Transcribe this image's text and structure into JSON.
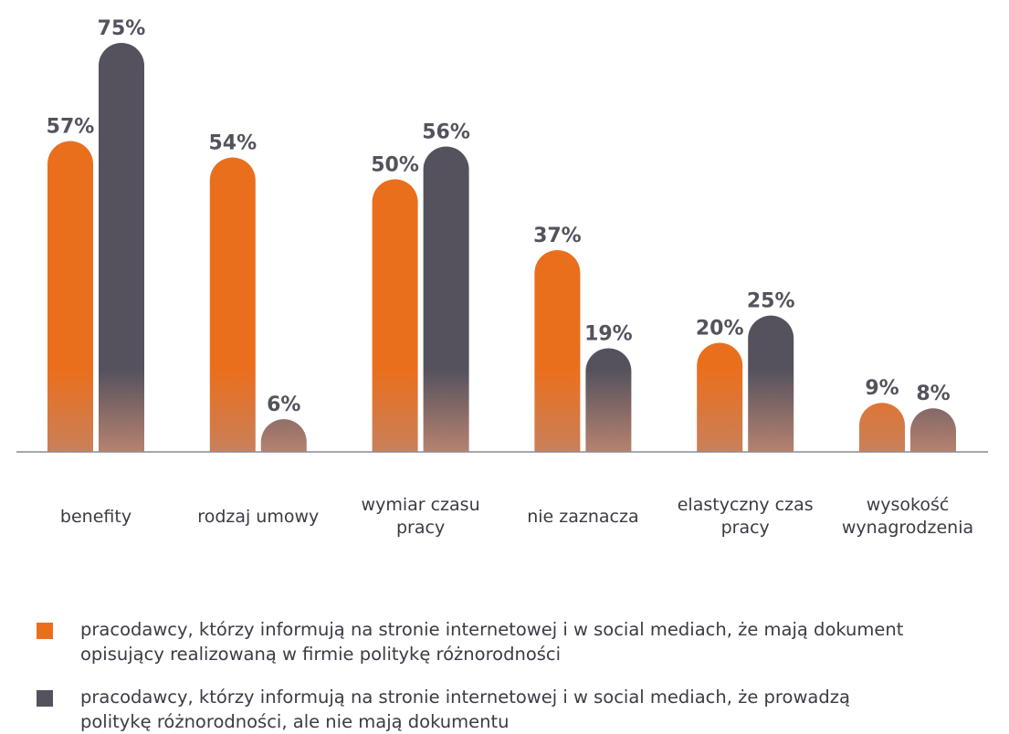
{
  "chart_data": {
    "type": "bar",
    "categories": [
      [
        "benefity"
      ],
      [
        "rodzaj umowy"
      ],
      [
        "wymiar czasu",
        "pracy"
      ],
      [
        "nie zaznacza"
      ],
      [
        "elastyczny czas",
        "pracy"
      ],
      [
        "wysokość",
        "wynagrodzenia"
      ]
    ],
    "series": [
      {
        "name": "pracodawcy, którzy informują na stronie internetowej i w social mediach, że mają dokument opisujący realizowaną w firmie politykę różnorodności",
        "values": [
          57,
          54,
          50,
          37,
          20,
          9
        ],
        "labels": [
          "57%",
          "54%",
          "50%",
          "37%",
          "20%",
          "9%"
        ],
        "color": "#ea6f1d"
      },
      {
        "name": "pracodawcy, którzy informują na stronie internetowej i w social mediach, że prowadzą politykę różnorodności, ale nie mają dokumentu",
        "values": [
          75,
          6,
          56,
          19,
          25,
          8
        ],
        "labels": [
          "75%",
          "6%",
          "56%",
          "19%",
          "25%",
          "8%"
        ],
        "color": "#55525e"
      }
    ],
    "ylim": [
      0,
      75
    ],
    "grid": false,
    "legend": "bottom"
  },
  "legend": [
    {
      "line1": "pracodawcy, którzy informują na stronie internetowej i w social mediach, że mają dokument",
      "line2": "opisujący realizowaną w firmie politykę różnorodności",
      "color": "#ea6f1d"
    },
    {
      "line1": "pracodawcy, którzy informują na stronie internetowej i w social mediach, że prowadzą",
      "line2": "politykę różnorodności, ale nie mają dokumentu",
      "color": "#55525e"
    }
  ]
}
